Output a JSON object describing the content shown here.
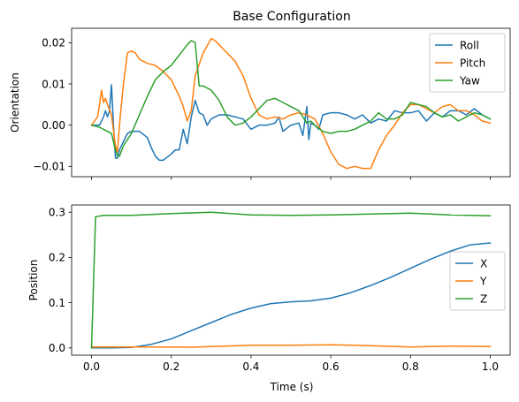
{
  "chart_data": [
    {
      "type": "line",
      "title": "Base Configuration",
      "xlabel": "",
      "ylabel": "Orientation",
      "xlim": [
        -0.05,
        1.05
      ],
      "ylim": [
        -0.0125,
        0.0235
      ],
      "xticks": [
        0.0,
        0.2,
        0.4,
        0.6,
        0.8,
        1.0
      ],
      "xtick_labels": [
        "",
        "",
        "",
        "",
        "",
        ""
      ],
      "yticks": [
        -0.01,
        0.0,
        0.01,
        0.02
      ],
      "ytick_labels": [
        "−0.01",
        "0.00",
        "0.01",
        "0.02"
      ],
      "legend": "upper-right",
      "series": [
        {
          "name": "Roll",
          "color": "#1f77b4",
          "x": [
            0.0,
            0.02,
            0.03,
            0.035,
            0.04,
            0.045,
            0.05,
            0.055,
            0.06,
            0.065,
            0.07,
            0.08,
            0.09,
            0.1,
            0.12,
            0.14,
            0.15,
            0.16,
            0.17,
            0.18,
            0.2,
            0.21,
            0.22,
            0.23,
            0.24,
            0.25,
            0.26,
            0.27,
            0.28,
            0.29,
            0.3,
            0.32,
            0.34,
            0.36,
            0.38,
            0.4,
            0.42,
            0.44,
            0.46,
            0.47,
            0.48,
            0.5,
            0.52,
            0.53,
            0.54,
            0.545,
            0.55,
            0.56,
            0.57,
            0.58,
            0.6,
            0.62,
            0.64,
            0.66,
            0.68,
            0.7,
            0.72,
            0.74,
            0.76,
            0.78,
            0.8,
            0.82,
            0.84,
            0.86,
            0.88,
            0.9,
            0.92,
            0.94,
            0.96,
            0.98,
            1.0
          ],
          "y": [
            0.0,
            0.0,
            0.002,
            0.0035,
            0.002,
            0.0035,
            0.0098,
            0.0,
            -0.008,
            -0.008,
            -0.006,
            -0.004,
            -0.002,
            -0.0015,
            -0.0015,
            -0.003,
            -0.0055,
            -0.0075,
            -0.0085,
            -0.0085,
            -0.007,
            -0.006,
            -0.006,
            -0.001,
            -0.0045,
            0.002,
            0.006,
            0.003,
            0.0025,
            0.0,
            0.0015,
            0.0025,
            0.0025,
            0.002,
            0.0015,
            -0.001,
            0.0,
            0.0,
            0.0005,
            0.002,
            -0.0015,
            0.0,
            0.0005,
            -0.0025,
            0.0045,
            -0.0035,
            0.0005,
            0.0,
            -0.001,
            0.0025,
            0.003,
            0.003,
            0.0025,
            0.0015,
            0.0025,
            0.0005,
            0.0015,
            0.001,
            0.0035,
            0.003,
            0.003,
            0.0035,
            0.001,
            0.003,
            0.002,
            0.0035,
            0.0035,
            0.0025,
            0.004,
            0.0025,
            0.0015
          ]
        },
        {
          "name": "Pitch",
          "color": "#ff7f0e",
          "x": [
            0.0,
            0.015,
            0.02,
            0.025,
            0.03,
            0.035,
            0.04,
            0.05,
            0.06,
            0.065,
            0.07,
            0.08,
            0.09,
            0.1,
            0.11,
            0.12,
            0.14,
            0.16,
            0.18,
            0.2,
            0.22,
            0.23,
            0.24,
            0.25,
            0.26,
            0.28,
            0.3,
            0.31,
            0.32,
            0.34,
            0.36,
            0.38,
            0.4,
            0.42,
            0.44,
            0.46,
            0.48,
            0.5,
            0.52,
            0.54,
            0.56,
            0.58,
            0.6,
            0.62,
            0.64,
            0.66,
            0.68,
            0.7,
            0.72,
            0.74,
            0.76,
            0.78,
            0.8,
            0.82,
            0.84,
            0.86,
            0.88,
            0.9,
            0.92,
            0.94,
            0.96,
            0.98,
            1.0
          ],
          "y": [
            0.0,
            0.002,
            0.005,
            0.0085,
            0.0055,
            0.0065,
            0.005,
            0.0025,
            -0.005,
            -0.0065,
            0.0,
            0.01,
            0.0175,
            0.018,
            0.0175,
            0.016,
            0.015,
            0.0145,
            0.013,
            0.011,
            0.007,
            0.0045,
            0.001,
            0.0035,
            0.012,
            0.0175,
            0.021,
            0.0205,
            0.0195,
            0.0175,
            0.0155,
            0.012,
            0.0065,
            0.0025,
            0.0015,
            0.002,
            0.0015,
            0.0025,
            0.003,
            0.0025,
            0.0015,
            -0.002,
            -0.0065,
            -0.0095,
            -0.0105,
            -0.01,
            -0.0105,
            -0.0105,
            -0.006,
            -0.0025,
            0.0,
            0.003,
            0.005,
            0.005,
            0.004,
            0.003,
            0.0045,
            0.005,
            0.0035,
            0.0035,
            0.0025,
            0.001,
            0.0005
          ]
        },
        {
          "name": "Yaw",
          "color": "#2ca02c",
          "x": [
            0.0,
            0.02,
            0.04,
            0.05,
            0.06,
            0.065,
            0.07,
            0.08,
            0.1,
            0.12,
            0.14,
            0.16,
            0.18,
            0.2,
            0.22,
            0.24,
            0.25,
            0.26,
            0.27,
            0.28,
            0.3,
            0.32,
            0.34,
            0.36,
            0.38,
            0.4,
            0.42,
            0.44,
            0.46,
            0.48,
            0.5,
            0.52,
            0.54,
            0.55,
            0.56,
            0.58,
            0.6,
            0.62,
            0.64,
            0.66,
            0.68,
            0.7,
            0.72,
            0.74,
            0.76,
            0.78,
            0.8,
            0.82,
            0.84,
            0.86,
            0.88,
            0.9,
            0.92,
            0.94,
            0.96,
            0.98,
            1.0
          ],
          "y": [
            0.0,
            -0.0005,
            -0.0015,
            -0.002,
            -0.006,
            -0.0075,
            -0.0075,
            -0.005,
            -0.002,
            0.0025,
            0.007,
            0.011,
            0.013,
            0.0145,
            0.017,
            0.0195,
            0.0205,
            0.02,
            0.0095,
            0.0095,
            0.0085,
            0.006,
            0.002,
            0.0,
            0.0005,
            0.002,
            0.004,
            0.006,
            0.0065,
            0.0055,
            0.0045,
            0.0035,
            0.0005,
            0.001,
            0.0,
            -0.0015,
            -0.002,
            -0.0015,
            -0.0015,
            -0.001,
            0.0,
            0.001,
            0.003,
            0.0015,
            0.0015,
            0.0025,
            0.0055,
            0.005,
            0.0045,
            0.003,
            0.002,
            0.0025,
            0.001,
            0.002,
            0.003,
            0.0025,
            0.0015
          ]
        }
      ]
    },
    {
      "type": "line",
      "title": "",
      "xlabel": "Time (s)",
      "ylabel": "Position",
      "xlim": [
        -0.05,
        1.05
      ],
      "ylim": [
        -0.016,
        0.316
      ],
      "xticks": [
        0.0,
        0.2,
        0.4,
        0.6,
        0.8,
        1.0
      ],
      "xtick_labels": [
        "0.0",
        "0.2",
        "0.4",
        "0.6",
        "0.8",
        "1.0"
      ],
      "yticks": [
        0.0,
        0.1,
        0.2,
        0.3
      ],
      "ytick_labels": [
        "0.0",
        "0.1",
        "0.2",
        "0.3"
      ],
      "legend": "center-right",
      "series": [
        {
          "name": "X",
          "color": "#1f77b4",
          "x": [
            0.0,
            0.05,
            0.1,
            0.15,
            0.2,
            0.25,
            0.3,
            0.35,
            0.4,
            0.45,
            0.5,
            0.55,
            0.6,
            0.65,
            0.7,
            0.75,
            0.8,
            0.85,
            0.9,
            0.95,
            1.0
          ],
          "y": [
            0.0,
            0.0,
            0.001,
            0.008,
            0.02,
            0.038,
            0.056,
            0.074,
            0.088,
            0.098,
            0.102,
            0.104,
            0.11,
            0.122,
            0.138,
            0.156,
            0.176,
            0.196,
            0.214,
            0.228,
            0.232
          ]
        },
        {
          "name": "Y",
          "color": "#ff7f0e",
          "x": [
            0.0,
            0.1,
            0.2,
            0.25,
            0.3,
            0.4,
            0.5,
            0.6,
            0.7,
            0.8,
            0.9,
            1.0
          ],
          "y": [
            0.002,
            0.002,
            0.002,
            0.0015,
            0.003,
            0.006,
            0.006,
            0.007,
            0.005,
            0.002,
            0.004,
            0.003
          ]
        },
        {
          "name": "Z",
          "color": "#2ca02c",
          "x": [
            0.0,
            0.01,
            0.03,
            0.1,
            0.2,
            0.3,
            0.4,
            0.5,
            0.6,
            0.7,
            0.8,
            0.9,
            1.0
          ],
          "y": [
            0.0,
            0.29,
            0.293,
            0.293,
            0.297,
            0.3,
            0.294,
            0.293,
            0.294,
            0.296,
            0.298,
            0.294,
            0.292
          ]
        }
      ]
    }
  ]
}
